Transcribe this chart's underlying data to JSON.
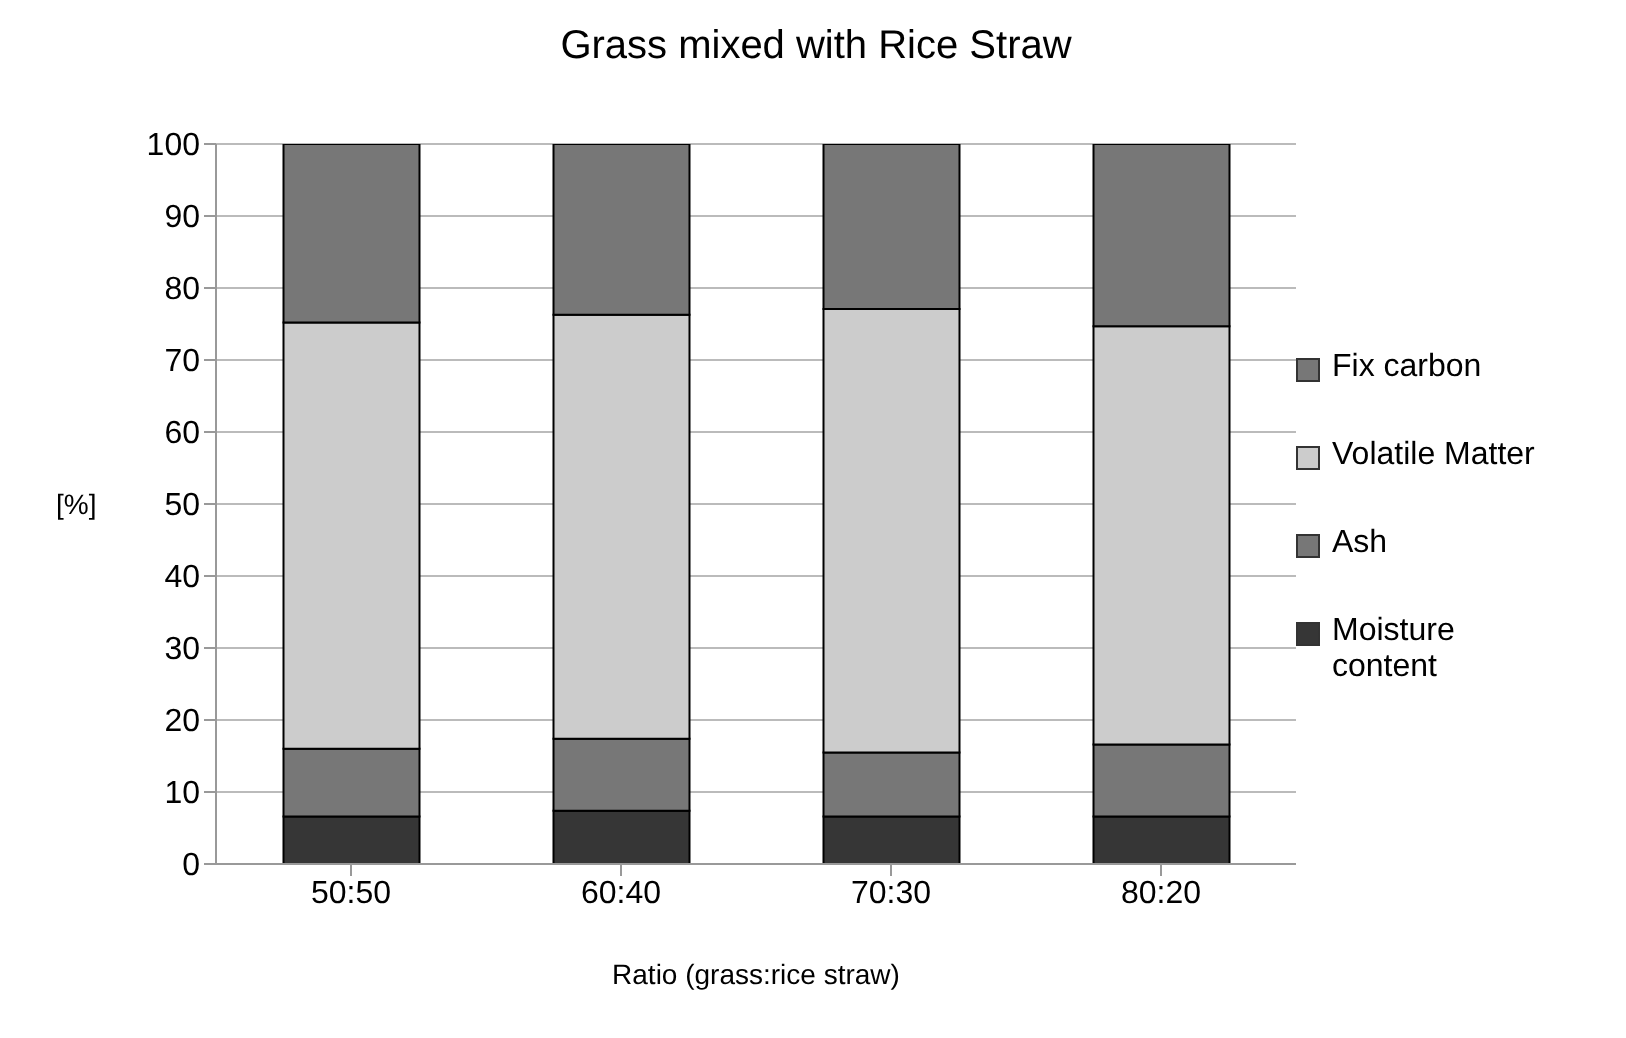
{
  "chart_data": {
    "type": "bar",
    "title": "Grass mixed with Rice Straw",
    "xlabel": "Ratio (grass:rice straw)",
    "ylabel": "[%]",
    "categories": [
      "50:50",
      "60:40",
      "70:30",
      "80:20"
    ],
    "stacked": true,
    "ylim": [
      0,
      100
    ],
    "yticks": [
      0,
      10,
      20,
      30,
      40,
      50,
      60,
      70,
      80,
      90,
      100
    ],
    "grid": "y",
    "legend": "right",
    "series": [
      {
        "name": "Moisture content",
        "color": "#363636",
        "values": [
          6.6,
          7.4,
          6.6,
          6.6
        ]
      },
      {
        "name": "Ash",
        "color": "#777777",
        "values": [
          9.4,
          10.0,
          8.9,
          10.0
        ]
      },
      {
        "name": "Volatile Matter",
        "color": "#cccccc",
        "values": [
          59.2,
          58.9,
          61.6,
          58.1
        ]
      },
      {
        "name": "Fix carbon",
        "color": "#777777",
        "values": [
          24.8,
          23.7,
          22.9,
          25.3
        ]
      }
    ]
  }
}
